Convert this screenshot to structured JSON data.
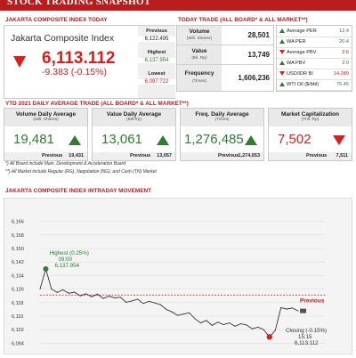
{
  "banner": {
    "title": "STOCK TRADING SNAPSHOT"
  },
  "jci": {
    "section_title": "JAKARTA COMPOSITE INDEX TODAY",
    "name": "Jakarta Composite Index",
    "value": "6,113.112",
    "change": "-9.383 (-0.15%)",
    "previous_label": "Previous",
    "previous": "6,122.495",
    "highest_label": "Highest",
    "highest": "6,137.954",
    "lowest_label": "Lowest",
    "lowest": "6,097.722"
  },
  "trade": {
    "section_title": "TODAY TRADE (ALL BOARD* & ALL MARKET**)",
    "rows": [
      {
        "label": "Volume",
        "sub": "(Mill. Shares)",
        "value": "28,501"
      },
      {
        "label": "Value",
        "sub": "(Bil. Rp)",
        "value": "13,749"
      },
      {
        "label": "Frequency",
        "sub": "(Times)",
        "value": "1,606,236"
      }
    ],
    "indicators": [
      {
        "label": "Average PER",
        "value": "12.4",
        "dir": "up"
      },
      {
        "label": "WA PER",
        "value": "20.4",
        "dir": "up"
      },
      {
        "label": "Average PBV",
        "value": "2.6",
        "dir": "down"
      },
      {
        "label": "WA PBV",
        "value": "2.0",
        "dir": "up"
      },
      {
        "label": "USD/IDR BI",
        "value": "14,289",
        "dir": "down"
      },
      {
        "label": "WTI Oil ($/bbl)",
        "value": "75.45",
        "dir": "up"
      }
    ]
  },
  "ytd": {
    "section_title": "YTD 2021 DAILY AVERAGE TRADE (ALL BOARD* & ALL MARKET**)",
    "boxes": [
      {
        "title": "Volume Daily Average",
        "sub": "(Mill. Shares)",
        "value": "19,481",
        "dir": "up",
        "prev_label": "Previous",
        "prev": "19,431"
      },
      {
        "title": "Value Daily Average",
        "sub": "(Bill.Rp)",
        "value": "13,061",
        "dir": "up",
        "prev_label": "Previous",
        "prev": "13,057"
      },
      {
        "title": "Freq. Daily Average",
        "sub": "(Times)",
        "value": "1,276,485",
        "dir": "up",
        "prev_label": "Previous",
        "prev": "1,274,653"
      },
      {
        "title": "Market Capitalization",
        "sub": "(Trill. Rp)",
        "value": "7,502",
        "dir": "down",
        "prev_label": "Previous",
        "prev": "7,511"
      }
    ],
    "notes": [
      "*) All Board include Main, Development & Acceleration Board",
      "**) All Market include Regular (RG), Negotiation (NG), and Cash (TN) Market"
    ]
  },
  "intraday": {
    "section_title": "JAKARTA COMPOSITE INDEX INTRADAY MOVEMENT"
  },
  "colors": {
    "accent": "#b81c1c",
    "up": "#2e7d32",
    "down": "#e01b1b"
  },
  "chart_data": {
    "type": "line",
    "title": "JAKARTA COMPOSITE INDEX INTRADAY MOVEMENT",
    "xlabel": "",
    "ylabel": "",
    "ylim": [
      6090,
      6170
    ],
    "yticks": [
      "6,166",
      "6,158",
      "6,150",
      "6,142",
      "6,134",
      "6,126",
      "6,118",
      "6,110",
      "6,102",
      "6,094"
    ],
    "grid": true,
    "previous": {
      "label": "Previous",
      "value": 6122.495
    },
    "highest": {
      "label": "Highest (0.25%)",
      "time": "09:00",
      "value": "6,137.954"
    },
    "closing": {
      "label": "Closing (-0.15%)",
      "time": "15:15",
      "value": "6,113.112"
    },
    "series": [
      {
        "values": [
          6126.0,
          6137.9,
          6126.0,
          6124.0,
          6125.5,
          6123.5,
          6124.2,
          6122.0,
          6123.2,
          6121.5,
          6123.0,
          6120.5,
          6121.8,
          6120.8,
          6121.2,
          6118.2,
          6119.0,
          6120.0,
          6117.5,
          6118.8,
          6117.8,
          6116.8,
          6114.0,
          6112.5,
          6110.5,
          6111.2,
          6112.0,
          6108.5,
          6106.0,
          6107.5,
          6104.5,
          6106.5,
          6105.0,
          6106.0,
          6104.0,
          6105.5,
          6104.8,
          6102.5,
          6103.5,
          6102.0,
          6097.7,
          6101.5,
          6115.0,
          6114.2,
          6114.8,
          6113.1
        ]
      }
    ]
  }
}
